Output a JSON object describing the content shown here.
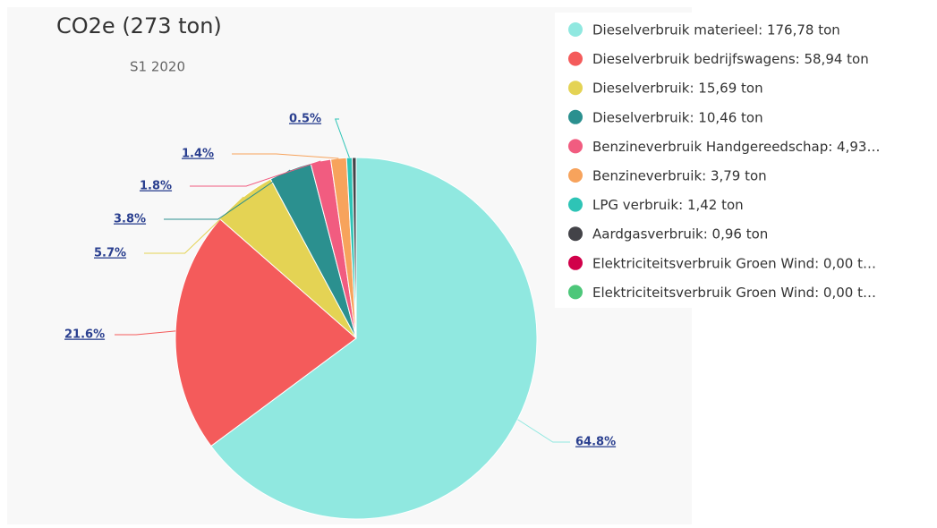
{
  "chart_data": {
    "type": "pie",
    "title": "CO2e (273 ton)",
    "subtitle": "S1 2020",
    "categories": [
      "Dieselverbruik materieel: 176,78 ton",
      "Dieselverbruik bedrijfswagens: 58,94 ton",
      "Dieselverbruik: 15,69 ton",
      "Dieselverbruik: 10,46 ton",
      "Benzineverbruik Handgereedschap: 4,93…",
      "Benzineverbruik: 3,79 ton",
      "LPG verbruik: 1,42 ton",
      "Aardgasverbruik: 0,96 ton",
      "Elektriciteitsverbruik Groen Wind: 0,00 t…",
      "Elektriciteitsverbruik Groen Wind: 0,00 t…"
    ],
    "values": [
      64.8,
      21.6,
      5.7,
      3.8,
      1.8,
      1.4,
      0.5,
      0.35,
      0,
      0
    ],
    "value_labels": [
      "64.8%",
      "21.6%",
      "5.7%",
      "3.8%",
      "1.8%",
      "1.4%",
      "0.5%",
      null,
      null,
      null
    ],
    "colors": [
      "#90e8e0",
      "#f45b5b",
      "#e4d354",
      "#2b908f",
      "#f15c80",
      "#f7a35c",
      "#2ec4b6",
      "#434348",
      "#d1004a",
      "#4dc77a"
    ],
    "legend": "top-right"
  }
}
